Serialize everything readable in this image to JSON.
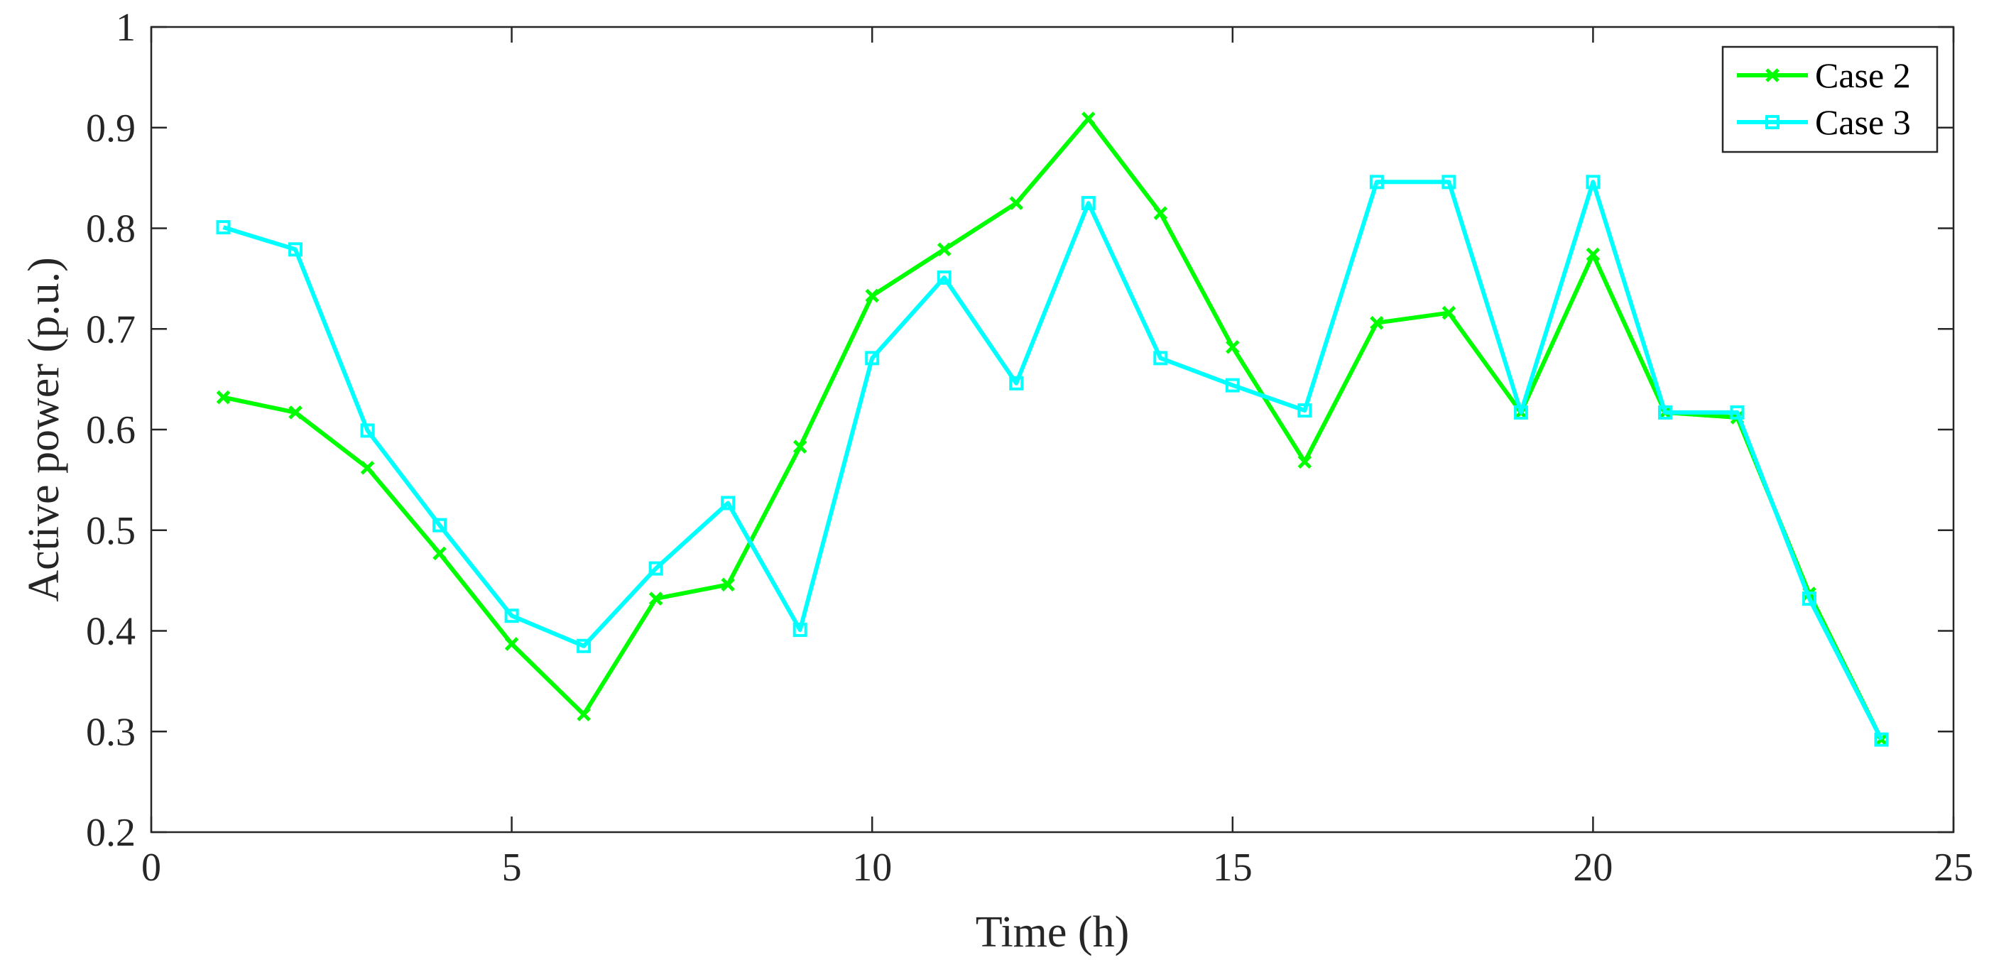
{
  "chart_data": {
    "type": "line",
    "title": "",
    "xlabel": "Time (h)",
    "ylabel": "Active power (p.u.)",
    "xlim": [
      0,
      25
    ],
    "ylim": [
      0.2,
      1.0
    ],
    "xticks": [
      0,
      5,
      10,
      15,
      20,
      25
    ],
    "yticks": [
      0.2,
      0.3,
      0.4,
      0.5,
      0.6,
      0.7,
      0.8,
      0.9,
      1.0
    ],
    "xtick_labels": [
      "0",
      "5",
      "10",
      "15",
      "20",
      "25"
    ],
    "ytick_labels": [
      "0.2",
      "0.3",
      "0.4",
      "0.5",
      "0.6",
      "0.7",
      "0.8",
      "0.9",
      "1"
    ],
    "grid": false,
    "legend_position": "top-right",
    "x": [
      1,
      2,
      3,
      4,
      5,
      6,
      7,
      8,
      9,
      10,
      11,
      12,
      13,
      14,
      15,
      16,
      17,
      18,
      19,
      20,
      21,
      22,
      23,
      24
    ],
    "series": [
      {
        "name": "Case 2",
        "color": "#00ff00",
        "marker": "x",
        "values": [
          0.632,
          0.617,
          0.562,
          0.477,
          0.387,
          0.317,
          0.432,
          0.446,
          0.583,
          0.733,
          0.779,
          0.825,
          0.909,
          0.815,
          0.682,
          0.568,
          0.706,
          0.716,
          0.617,
          0.774,
          0.617,
          0.612,
          0.437,
          0.292
        ]
      },
      {
        "name": "Case 3",
        "color": "#00ffff",
        "marker": "square",
        "values": [
          0.801,
          0.779,
          0.599,
          0.505,
          0.415,
          0.385,
          0.462,
          0.527,
          0.401,
          0.671,
          0.751,
          0.646,
          0.825,
          0.671,
          0.644,
          0.619,
          0.846,
          0.846,
          0.617,
          0.846,
          0.617,
          0.617,
          0.432,
          0.292
        ]
      }
    ]
  }
}
